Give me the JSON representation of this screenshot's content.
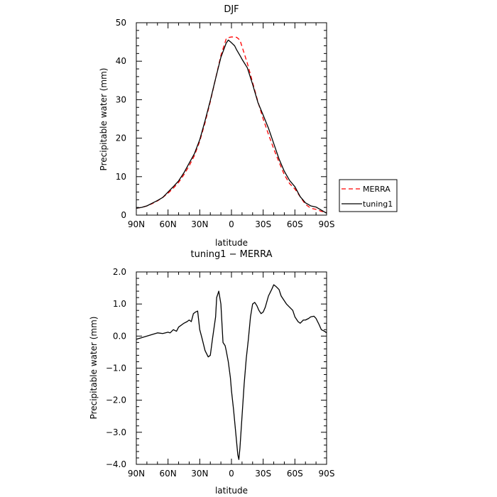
{
  "chart_data": [
    {
      "type": "line",
      "title": "DJF",
      "xlabel": "latitude",
      "ylabel": "Precipitable water (mm)",
      "xlim": [
        90,
        -90
      ],
      "ylim": [
        0,
        50
      ],
      "x_tick_values": [
        90,
        60,
        30,
        0,
        -30,
        -60,
        -90
      ],
      "x_tick_labels": [
        "90N",
        "60N",
        "30N",
        "0",
        "30S",
        "60S",
        "90S"
      ],
      "y_tick_values": [
        0,
        10,
        20,
        30,
        40,
        50
      ],
      "y_tick_labels": [
        "0",
        "10",
        "20",
        "30",
        "40",
        "50"
      ],
      "grid": false,
      "legend_position": "outside-right",
      "series": [
        {
          "name": "MERRA",
          "color": "#ff0000",
          "dash": "dashed",
          "x": [
            90,
            85,
            80,
            75,
            70,
            65,
            60,
            55,
            50,
            45,
            40,
            35,
            30,
            25,
            20,
            15,
            10,
            5,
            2,
            0,
            -2,
            -5,
            -8,
            -10,
            -15,
            -20,
            -25,
            -30,
            -35,
            -40,
            -45,
            -50,
            -55,
            -60,
            -65,
            -70,
            -75,
            -80,
            -85,
            -90
          ],
          "y": [
            1.8,
            2.0,
            2.4,
            3.0,
            3.7,
            4.6,
            5.7,
            7.0,
            8.5,
            10.5,
            12.8,
            15.5,
            19.2,
            24.0,
            29.5,
            35.5,
            41.5,
            45.8,
            46.2,
            46.3,
            46.3,
            46.2,
            45.5,
            43.8,
            39.5,
            34.5,
            29.5,
            25.0,
            21.0,
            17.2,
            13.8,
            10.5,
            8.2,
            6.8,
            4.8,
            2.8,
            1.8,
            1.5,
            1.0,
            0.7
          ]
        },
        {
          "name": "tuning1",
          "color": "#000000",
          "dash": "solid",
          "x": [
            90,
            85,
            80,
            75,
            70,
            65,
            60,
            55,
            50,
            45,
            40,
            35,
            30,
            25,
            20,
            15,
            10,
            5,
            3,
            0,
            -3,
            -5,
            -8,
            -10,
            -15,
            -20,
            -25,
            -30,
            -35,
            -40,
            -45,
            -50,
            -55,
            -60,
            -65,
            -70,
            -75,
            -80,
            -85,
            -90
          ],
          "y": [
            1.8,
            2.0,
            2.4,
            3.1,
            3.8,
            4.6,
            6.0,
            7.4,
            8.9,
            11.0,
            13.5,
            16.0,
            19.6,
            24.5,
            29.8,
            35.5,
            41.0,
            44.7,
            45.5,
            44.8,
            44.0,
            42.9,
            41.5,
            40.5,
            38.3,
            34.0,
            29.3,
            26.0,
            22.6,
            18.6,
            14.6,
            11.4,
            9.0,
            7.4,
            4.8,
            3.2,
            2.4,
            2.1,
            1.3,
            0.5
          ]
        }
      ]
    },
    {
      "type": "line",
      "title": "tuning1 − MERRA",
      "xlabel": "latitude",
      "ylabel": "Precipitable water (mm)",
      "xlim": [
        90,
        -90
      ],
      "ylim": [
        -4.0,
        2.0
      ],
      "x_tick_values": [
        90,
        60,
        30,
        0,
        -30,
        -60,
        -90
      ],
      "x_tick_labels": [
        "90N",
        "60N",
        "30N",
        "0",
        "30S",
        "60S",
        "90S"
      ],
      "y_tick_values": [
        2.0,
        1.0,
        0.0,
        -1.0,
        -2.0,
        -3.0,
        -4.0
      ],
      "y_tick_labels": [
        "2.0",
        "1.0",
        "0.0",
        "−1.0",
        "−2.0",
        "−3.0",
        "−4.0"
      ],
      "grid": false,
      "series": [
        {
          "color": "#000000",
          "dash": "solid",
          "x": [
            90,
            85,
            80,
            75,
            70,
            65,
            60,
            58,
            55,
            52,
            50,
            45,
            42,
            40,
            38,
            36,
            34,
            32,
            30,
            28,
            25,
            22,
            20,
            18,
            15,
            14,
            12,
            10,
            8,
            6,
            5,
            3,
            1,
            0,
            -2,
            -4,
            -6,
            -7,
            -8,
            -10,
            -12,
            -14,
            -16,
            -18,
            -20,
            -22,
            -24,
            -26,
            -28,
            -30,
            -32,
            -35,
            -38,
            -40,
            -42,
            -45,
            -47,
            -50,
            -52,
            -55,
            -58,
            -60,
            -63,
            -65,
            -68,
            -70,
            -73,
            -75,
            -78,
            -80,
            -83,
            -85,
            -88,
            -90
          ],
          "y": [
            -0.1,
            -0.05,
            0.0,
            0.05,
            0.1,
            0.08,
            0.12,
            0.1,
            0.2,
            0.15,
            0.28,
            0.4,
            0.45,
            0.5,
            0.45,
            0.7,
            0.75,
            0.78,
            0.2,
            -0.05,
            -0.45,
            -0.65,
            -0.6,
            -0.1,
            0.6,
            1.2,
            1.4,
            1.0,
            -0.2,
            -0.3,
            -0.45,
            -0.8,
            -1.3,
            -1.7,
            -2.3,
            -3.0,
            -3.7,
            -3.85,
            -3.5,
            -2.5,
            -1.5,
            -0.7,
            -0.1,
            0.6,
            1.0,
            1.05,
            0.95,
            0.8,
            0.7,
            0.75,
            0.9,
            1.25,
            1.45,
            1.6,
            1.55,
            1.45,
            1.25,
            1.1,
            1.0,
            0.9,
            0.8,
            0.6,
            0.45,
            0.4,
            0.5,
            0.5,
            0.55,
            0.6,
            0.62,
            0.55,
            0.35,
            0.2,
            0.15,
            0.1
          ]
        }
      ]
    }
  ]
}
